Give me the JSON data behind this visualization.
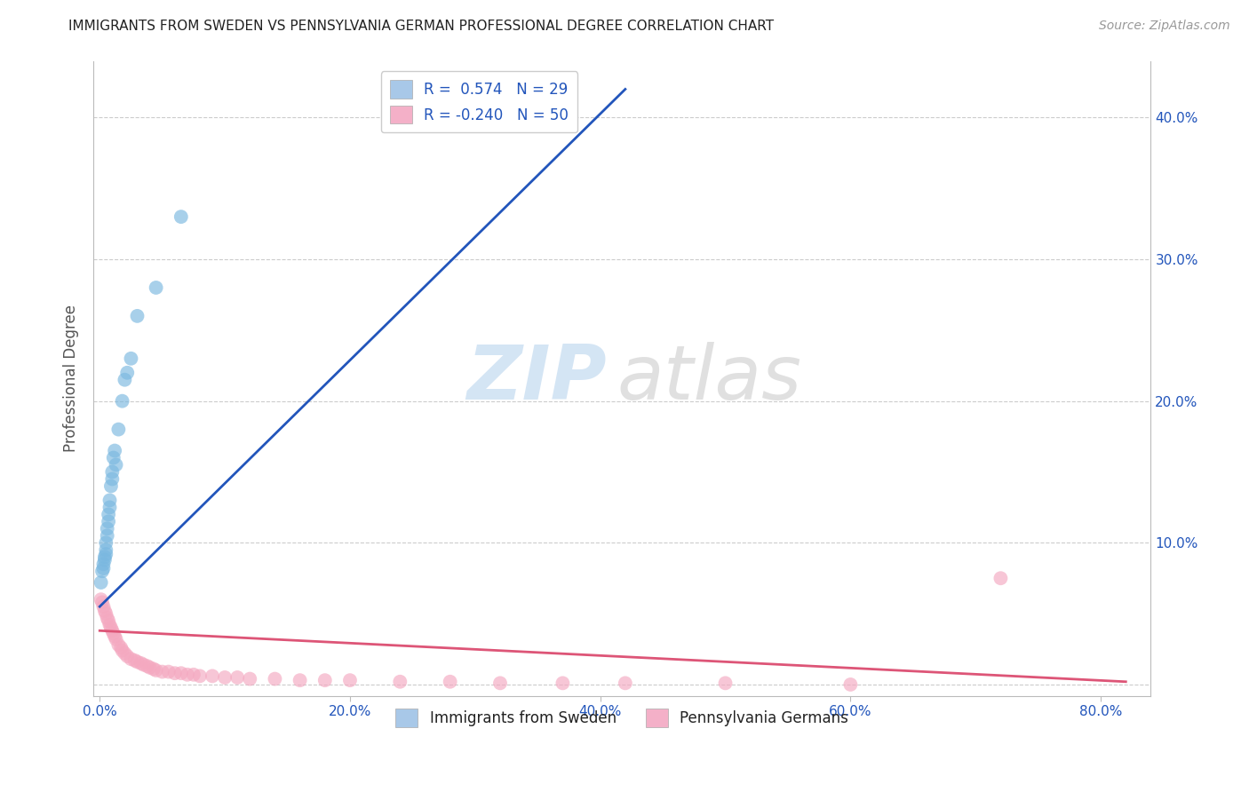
{
  "title": "IMMIGRANTS FROM SWEDEN VS PENNSYLVANIA GERMAN PROFESSIONAL DEGREE CORRELATION CHART",
  "source": "Source: ZipAtlas.com",
  "ylabel": "Professional Degree",
  "xlabel_ticks": [
    "0.0%",
    "20.0%",
    "40.0%",
    "60.0%",
    "80.0%"
  ],
  "xlabel_vals": [
    0.0,
    0.2,
    0.4,
    0.6,
    0.8
  ],
  "ylabel_ticks_right": [
    "10.0%",
    "20.0%",
    "30.0%",
    "40.0%"
  ],
  "ylabel_vals": [
    0.0,
    0.1,
    0.2,
    0.3,
    0.4
  ],
  "xlim": [
    -0.005,
    0.84
  ],
  "ylim": [
    -0.008,
    0.44
  ],
  "legend_entries": [
    {
      "label": "R =  0.574   N = 29",
      "color": "#a8c8e8"
    },
    {
      "label": "R = -0.240   N = 50",
      "color": "#f4b0c8"
    }
  ],
  "legend_labels_bottom": [
    "Immigrants from Sweden",
    "Pennsylvania Germans"
  ],
  "blue_scatter_x": [
    0.001,
    0.002,
    0.003,
    0.003,
    0.004,
    0.004,
    0.005,
    0.005,
    0.005,
    0.006,
    0.006,
    0.007,
    0.007,
    0.008,
    0.008,
    0.009,
    0.01,
    0.01,
    0.011,
    0.012,
    0.013,
    0.015,
    0.018,
    0.02,
    0.022,
    0.025,
    0.03,
    0.045,
    0.065
  ],
  "blue_scatter_y": [
    0.072,
    0.08,
    0.085,
    0.082,
    0.09,
    0.088,
    0.092,
    0.1,
    0.095,
    0.105,
    0.11,
    0.115,
    0.12,
    0.13,
    0.125,
    0.14,
    0.15,
    0.145,
    0.16,
    0.165,
    0.155,
    0.18,
    0.2,
    0.215,
    0.22,
    0.23,
    0.26,
    0.28,
    0.33
  ],
  "blue_line_x": [
    0.0,
    0.42
  ],
  "blue_line_y": [
    0.055,
    0.42
  ],
  "pink_scatter_x": [
    0.001,
    0.002,
    0.003,
    0.004,
    0.005,
    0.006,
    0.007,
    0.008,
    0.009,
    0.01,
    0.011,
    0.012,
    0.013,
    0.015,
    0.017,
    0.018,
    0.02,
    0.022,
    0.025,
    0.028,
    0.03,
    0.033,
    0.035,
    0.038,
    0.04,
    0.043,
    0.045,
    0.05,
    0.055,
    0.06,
    0.065,
    0.07,
    0.075,
    0.08,
    0.09,
    0.1,
    0.11,
    0.12,
    0.14,
    0.16,
    0.18,
    0.2,
    0.24,
    0.28,
    0.32,
    0.37,
    0.42,
    0.5,
    0.6,
    0.72
  ],
  "pink_scatter_y": [
    0.06,
    0.058,
    0.055,
    0.052,
    0.05,
    0.047,
    0.045,
    0.042,
    0.04,
    0.038,
    0.036,
    0.034,
    0.032,
    0.028,
    0.026,
    0.024,
    0.022,
    0.02,
    0.018,
    0.017,
    0.016,
    0.015,
    0.014,
    0.013,
    0.012,
    0.011,
    0.01,
    0.009,
    0.009,
    0.008,
    0.008,
    0.007,
    0.007,
    0.006,
    0.006,
    0.005,
    0.005,
    0.004,
    0.004,
    0.003,
    0.003,
    0.003,
    0.002,
    0.002,
    0.001,
    0.001,
    0.001,
    0.001,
    0.0,
    0.075
  ],
  "pink_line_x": [
    0.0,
    0.82
  ],
  "pink_line_y": [
    0.038,
    0.002
  ],
  "grid_color": "#cccccc",
  "blue_color": "#7ab8e0",
  "pink_color": "#f4a8c0",
  "line_blue_color": "#2255bb",
  "line_pink_color": "#dd5577",
  "title_color": "#222222",
  "axis_label_color": "#555555",
  "tick_color": "#2255bb",
  "source_color": "#999999"
}
